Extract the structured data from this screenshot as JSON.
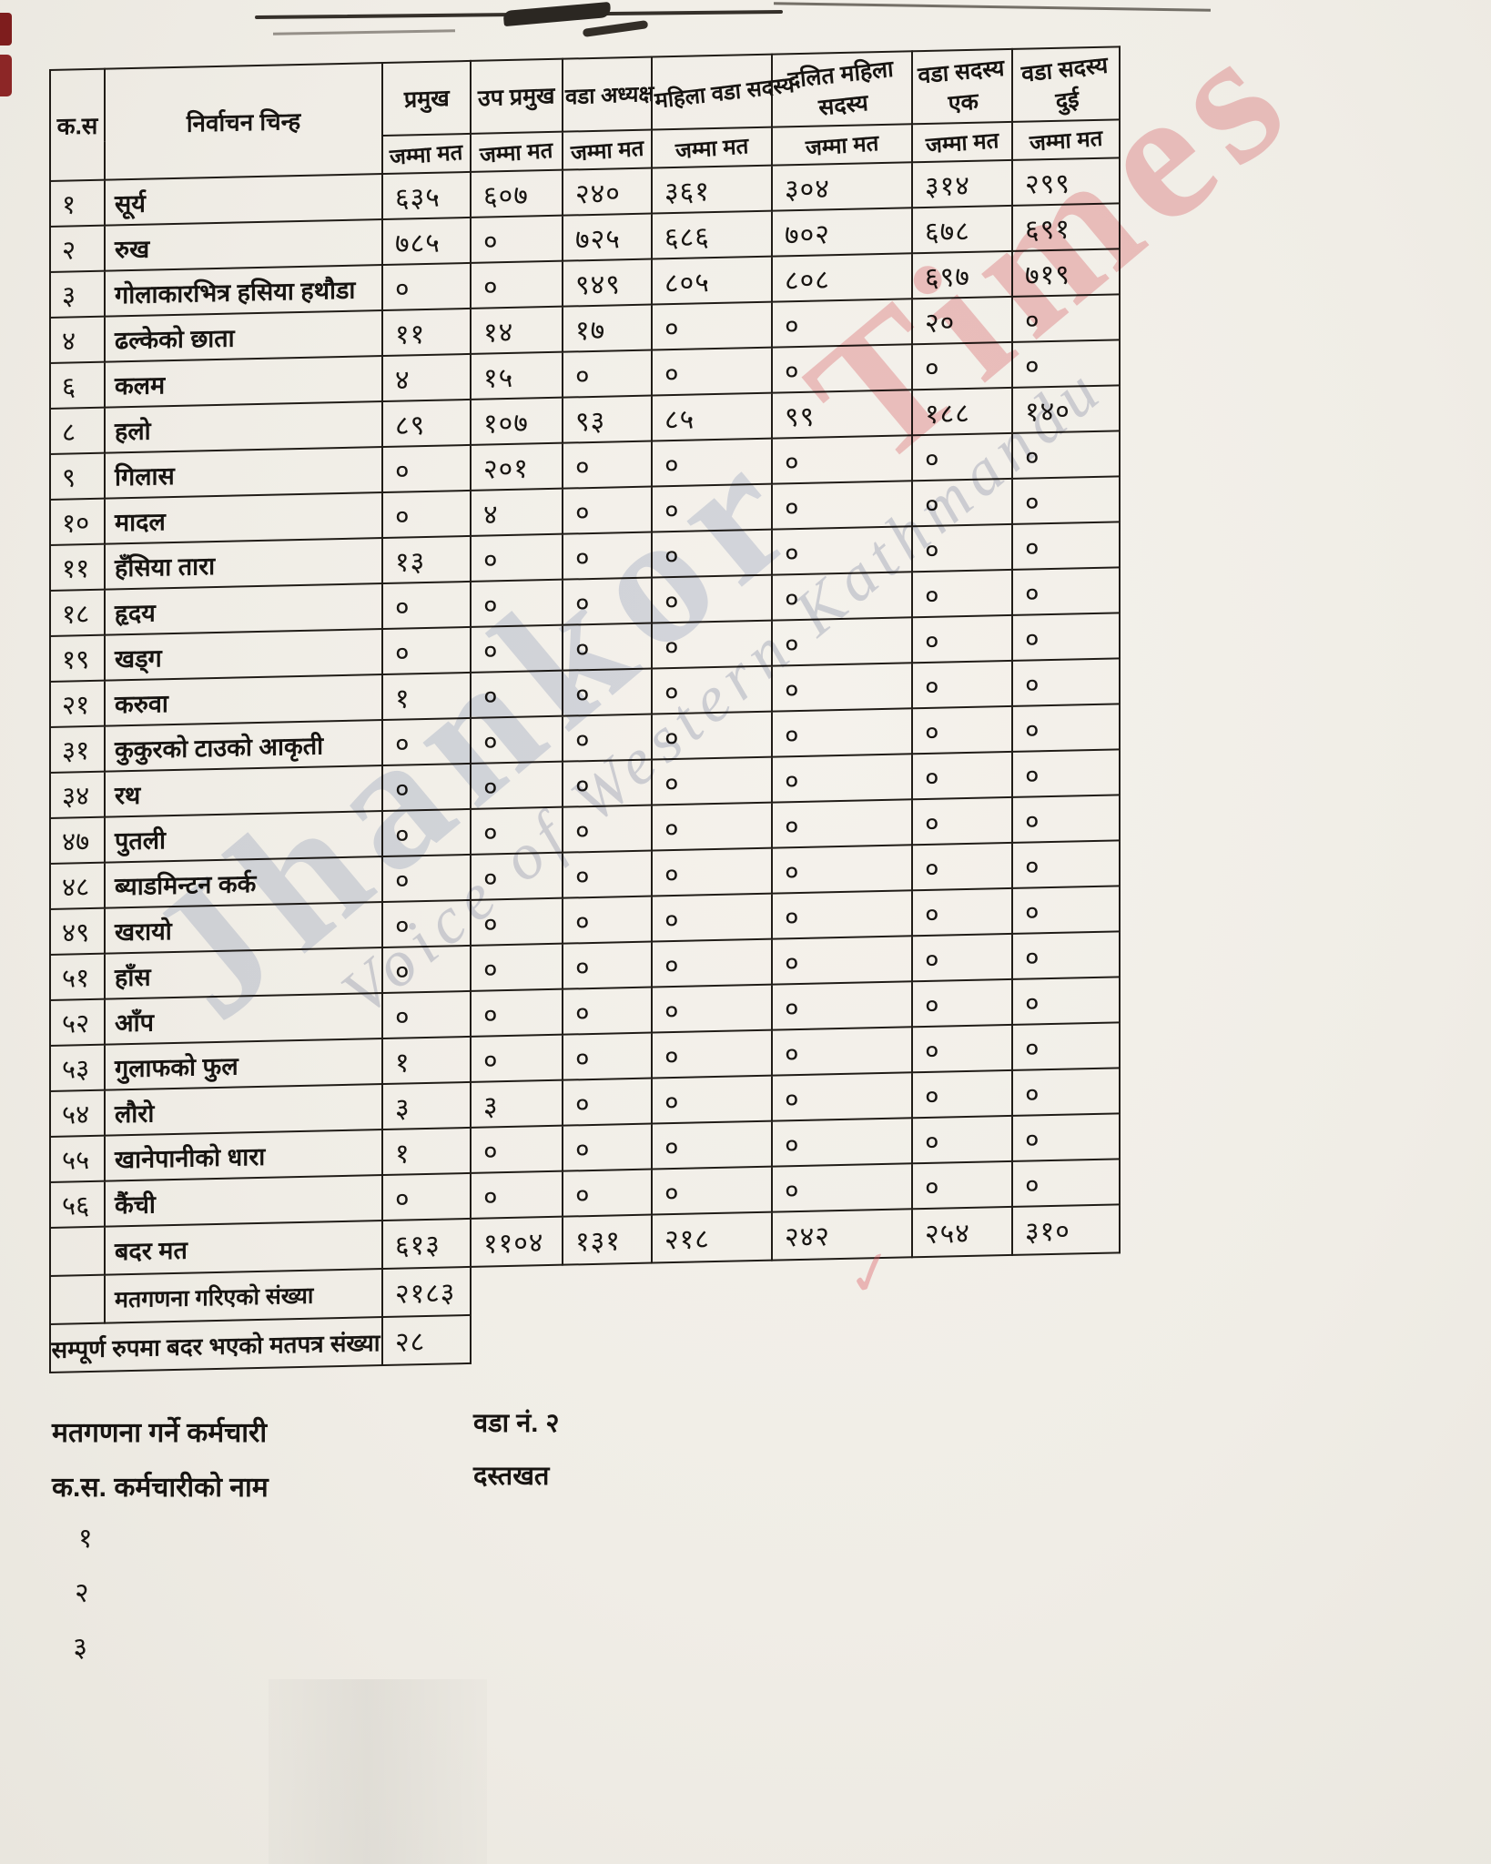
{
  "page": {
    "watermark": {
      "word1": "Jhankor",
      "word2": "Times",
      "script": "Voice of Western Kathmandu"
    },
    "colors": {
      "paper": "#f0ede6",
      "ink": "#201c17",
      "watermark_red": "#e26972",
      "watermark_blue": "#94a3c7"
    }
  },
  "table": {
    "header": {
      "serial": "क.स",
      "symbol": "निर्वाचन चिन्ह",
      "total_label": "जम्मा मत",
      "positions": [
        "प्रमुख",
        "उप प्रमुख",
        "वडा अध्यक्ष",
        "महिला वडा सदस्य",
        "दलित महिला सदस्य",
        "वडा सदस्य एक",
        "वडा सदस्य दुई"
      ]
    },
    "rows": [
      {
        "sn": "१",
        "symbol": "सूर्य",
        "votes": [
          "६३५",
          "६०७",
          "२४०",
          "३६१",
          "३०४",
          "३१४",
          "२९९"
        ]
      },
      {
        "sn": "२",
        "symbol": "रुख",
        "votes": [
          "७८५",
          "०",
          "७२५",
          "६८६",
          "७०२",
          "६७८",
          "६९१"
        ]
      },
      {
        "sn": "३",
        "symbol": "गोलाकारभित्र हसिया हथौडा",
        "votes": [
          "०",
          "०",
          "९४९",
          "८०५",
          "८०८",
          "६९७",
          "७१९"
        ]
      },
      {
        "sn": "४",
        "symbol": "ढल्केको छाता",
        "votes": [
          "११",
          "१४",
          "१७",
          "०",
          "०",
          "२०",
          "०"
        ]
      },
      {
        "sn": "६",
        "symbol": "कलम",
        "votes": [
          "४",
          "१५",
          "०",
          "०",
          "०",
          "०",
          "०"
        ]
      },
      {
        "sn": "८",
        "symbol": "हलो",
        "votes": [
          "८९",
          "१०७",
          "९३",
          "८५",
          "९९",
          "१८८",
          "१४०"
        ]
      },
      {
        "sn": "९",
        "symbol": "गिलास",
        "votes": [
          "०",
          "२०१",
          "०",
          "०",
          "०",
          "०",
          "०"
        ]
      },
      {
        "sn": "१०",
        "symbol": "मादल",
        "votes": [
          "०",
          "४",
          "०",
          "०",
          "०",
          "०",
          "०"
        ]
      },
      {
        "sn": "११",
        "symbol": "हँसिया तारा",
        "votes": [
          "१३",
          "०",
          "०",
          "०",
          "०",
          "०",
          "०"
        ]
      },
      {
        "sn": "१८",
        "symbol": "हृदय",
        "votes": [
          "०",
          "०",
          "०",
          "०",
          "०",
          "०",
          "०"
        ]
      },
      {
        "sn": "१९",
        "symbol": "खड्ग",
        "votes": [
          "०",
          "०",
          "०",
          "०",
          "०",
          "०",
          "०"
        ]
      },
      {
        "sn": "२१",
        "symbol": "करुवा",
        "votes": [
          "१",
          "०",
          "०",
          "०",
          "०",
          "०",
          "०"
        ]
      },
      {
        "sn": "३१",
        "symbol": "कुकुरको टाउको आकृती",
        "votes": [
          "०",
          "०",
          "०",
          "०",
          "०",
          "०",
          "०"
        ]
      },
      {
        "sn": "३४",
        "symbol": "रथ",
        "votes": [
          "०",
          "०",
          "०",
          "०",
          "०",
          "०",
          "०"
        ]
      },
      {
        "sn": "४७",
        "symbol": "पुतली",
        "votes": [
          "०",
          "०",
          "०",
          "०",
          "०",
          "०",
          "०"
        ]
      },
      {
        "sn": "४८",
        "symbol": "ब्याडमिन्टन कर्क",
        "votes": [
          "०",
          "०",
          "०",
          "०",
          "०",
          "०",
          "०"
        ]
      },
      {
        "sn": "४९",
        "symbol": "खरायो",
        "votes": [
          "०",
          "०",
          "०",
          "०",
          "०",
          "०",
          "०"
        ]
      },
      {
        "sn": "५१",
        "symbol": "हाँस",
        "votes": [
          "०",
          "०",
          "०",
          "०",
          "०",
          "०",
          "०"
        ]
      },
      {
        "sn": "५२",
        "symbol": "आँप",
        "votes": [
          "०",
          "०",
          "०",
          "०",
          "०",
          "०",
          "०"
        ]
      },
      {
        "sn": "५३",
        "symbol": "गुलाफको फुल",
        "votes": [
          "१",
          "०",
          "०",
          "०",
          "०",
          "०",
          "०"
        ]
      },
      {
        "sn": "५४",
        "symbol": "लौरो",
        "votes": [
          "३",
          "३",
          "०",
          "०",
          "०",
          "०",
          "०"
        ]
      },
      {
        "sn": "५५",
        "symbol": "खानेपानीको धारा",
        "votes": [
          "१",
          "०",
          "०",
          "०",
          "०",
          "०",
          "०"
        ]
      },
      {
        "sn": "५६",
        "symbol": "कैंची",
        "votes": [
          "०",
          "०",
          "०",
          "०",
          "०",
          "०",
          "०"
        ]
      }
    ],
    "invalid_votes_row": {
      "sn": "",
      "label": "बदर मत",
      "votes": [
        "६१३",
        "११०४",
        "१३१",
        "२१८",
        "२४२",
        "२५४",
        "३१०"
      ]
    },
    "counted_total_row": {
      "label": "मतगणना गरिएको संख्या",
      "value": "२१८३"
    },
    "fully_invalid_row": {
      "label": "सम्पूर्ण रुपमा बदर भएको मतपत्र संख्या",
      "value": "२८"
    }
  },
  "footer": {
    "counting_staff_heading": "मतगणना गर्ने कर्मचारी",
    "staff_name_heading": "क.स. कर्मचारीको नाम",
    "ward_label": "वडा नं. २",
    "signature_label": "दस्तखत",
    "staff_serial_numbers": [
      "१",
      "२",
      "३"
    ]
  }
}
